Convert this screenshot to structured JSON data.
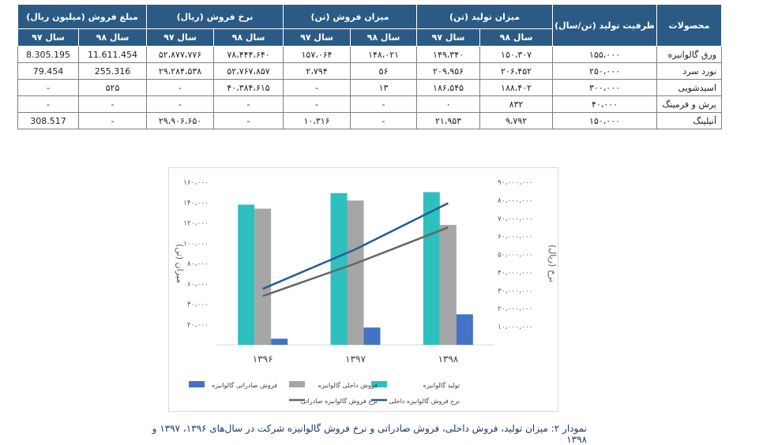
{
  "table": {
    "headers": {
      "product": "محصولات",
      "capacity": "ظرفیت تولید (تن/سال)",
      "production": "میزان تولید (تن)",
      "sales_volume": "میزان فروش (تن)",
      "sales_price": "نرخ فروش (ریال)",
      "sales_amount": "مبلغ فروش (میلیون ریال)"
    },
    "year98": "سال ۹۸",
    "year97": "سال ۹۷",
    "rows": [
      {
        "product": "ورق گالوانیزه",
        "capacity": "۱۵۵،۰۰۰",
        "prod98": "۱۵۰،۳۰۷",
        "prod97": "۱۴۹،۳۴۰",
        "sales98": "۱۴۸،۰۲۱",
        "sales97": "۱۵۷،۰۶۴",
        "price98": "۷۸،۴۴۴،۶۴۰",
        "price97": "۵۲،۸۷۷،۷۷۶",
        "amount98": "11.611.454",
        "amount97": "8.305.195"
      },
      {
        "product": "نورد سرد",
        "capacity": "۲۵۰،۰۰۰",
        "prod98": "۲۰۶،۴۵۲",
        "prod97": "۲۰۹،۹۵۶",
        "sales98": "۵۶",
        "sales97": "۲،۷۹۴",
        "price98": "۵۲،۷۶۷،۸۵۷",
        "price97": "۲۹،۲۸۴،۵۳۸",
        "amount98": "255.316",
        "amount97": "79.454"
      },
      {
        "product": "اسیدشویی",
        "capacity": "۳۰۰،۰۰۰",
        "prod98": "۱۸۸،۴۰۲",
        "prod97": "۱۸۶،۵۴۵",
        "sales98": "۱۳",
        "sales97": "-",
        "price98": "۴۰،۳۸۴،۶۱۵",
        "price97": "-",
        "amount98": "۵۲۵",
        "amount97": "-"
      },
      {
        "product": "برش و فرمینگ",
        "capacity": "۴۰،۰۰۰",
        "prod98": "۸۳۲",
        "prod97": "۰",
        "sales98": "-",
        "sales97": "-",
        "price98": "-",
        "price97": "-",
        "amount98": "-",
        "amount97": "-"
      },
      {
        "product": "آنیلینگ",
        "capacity": "۱۵۰،۰۰۰",
        "prod98": "۹،۷۹۲",
        "prod97": "۲۱،۹۵۳",
        "sales98": "-",
        "sales97": "۱۰،۳۱۶",
        "price98": "-",
        "price97": "۲۹،۹۰۶،۶۵۰",
        "amount98": "-",
        "amount97": "308.517"
      }
    ]
  },
  "chart_data": {
    "type": "bar",
    "categories": [
      "۱۳۹۶",
      "۱۳۹۷",
      "۱۳۹۸"
    ],
    "ylabel": "میزان (تن)",
    "y2label": "نرخ (ریال)",
    "ylim": [
      0,
      160000
    ],
    "y2lim": [
      0,
      90000000
    ],
    "y_ticks": [
      "۲۰،۰۰۰",
      "۴۰،۰۰۰",
      "۶۰،۰۰۰",
      "۸۰،۰۰۰",
      "۱۰۰،۰۰۰",
      "۱۲۰،۰۰۰",
      "۱۴۰،۰۰۰",
      "۱۶۰،۰۰۰"
    ],
    "y2_ticks": [
      "۱۰،۰۰۰،۰۰۰",
      "۲۰،۰۰۰،۰۰۰",
      "۳۰،۰۰۰،۰۰۰",
      "۴۰،۰۰۰،۰۰۰",
      "۵۰،۰۰۰،۰۰۰",
      "۶۰،۰۰۰،۰۰۰",
      "۷۰،۰۰۰،۰۰۰",
      "۸۰،۰۰۰،۰۰۰",
      "۹۰،۰۰۰،۰۰۰"
    ],
    "y_tick_values": [
      20000,
      40000,
      60000,
      80000,
      100000,
      120000,
      140000,
      160000
    ],
    "y2_tick_values": [
      10000000,
      20000000,
      30000000,
      40000000,
      50000000,
      60000000,
      70000000,
      80000000,
      90000000
    ],
    "bar_series": [
      {
        "name": "تولید گالوانیزه",
        "color": "#2ebfbf",
        "values": [
          138000,
          149340,
          150307
        ]
      },
      {
        "name": "فروش داخلی گالوانیزه",
        "color": "#a6a6a6",
        "values": [
          134000,
          142000,
          118000
        ]
      },
      {
        "name": "فروش صادراتی گالوانیزه",
        "color": "#4472c4",
        "values": [
          6000,
          17000,
          30000
        ]
      }
    ],
    "line_series": [
      {
        "name": "نرخ فروش گالوانیزه داخلی",
        "color": "#255e91",
        "axis": "right",
        "values": [
          31000000,
          52877776,
          78444640
        ]
      },
      {
        "name": "نرخ فروش گالوانیزه صادراتی",
        "color": "#666666",
        "axis": "right",
        "values": [
          27000000,
          45000000,
          65000000
        ]
      }
    ],
    "legend_position": "bottom",
    "grid": false
  },
  "caption": "نمودار ۲: میزان تولید، فروش داخلی، فروش صادراتی و نرخ فروش گالوانیزه شرکت در سال‌های ۱۳۹۶، ۱۳۹۷ و ۱۳۹۸"
}
